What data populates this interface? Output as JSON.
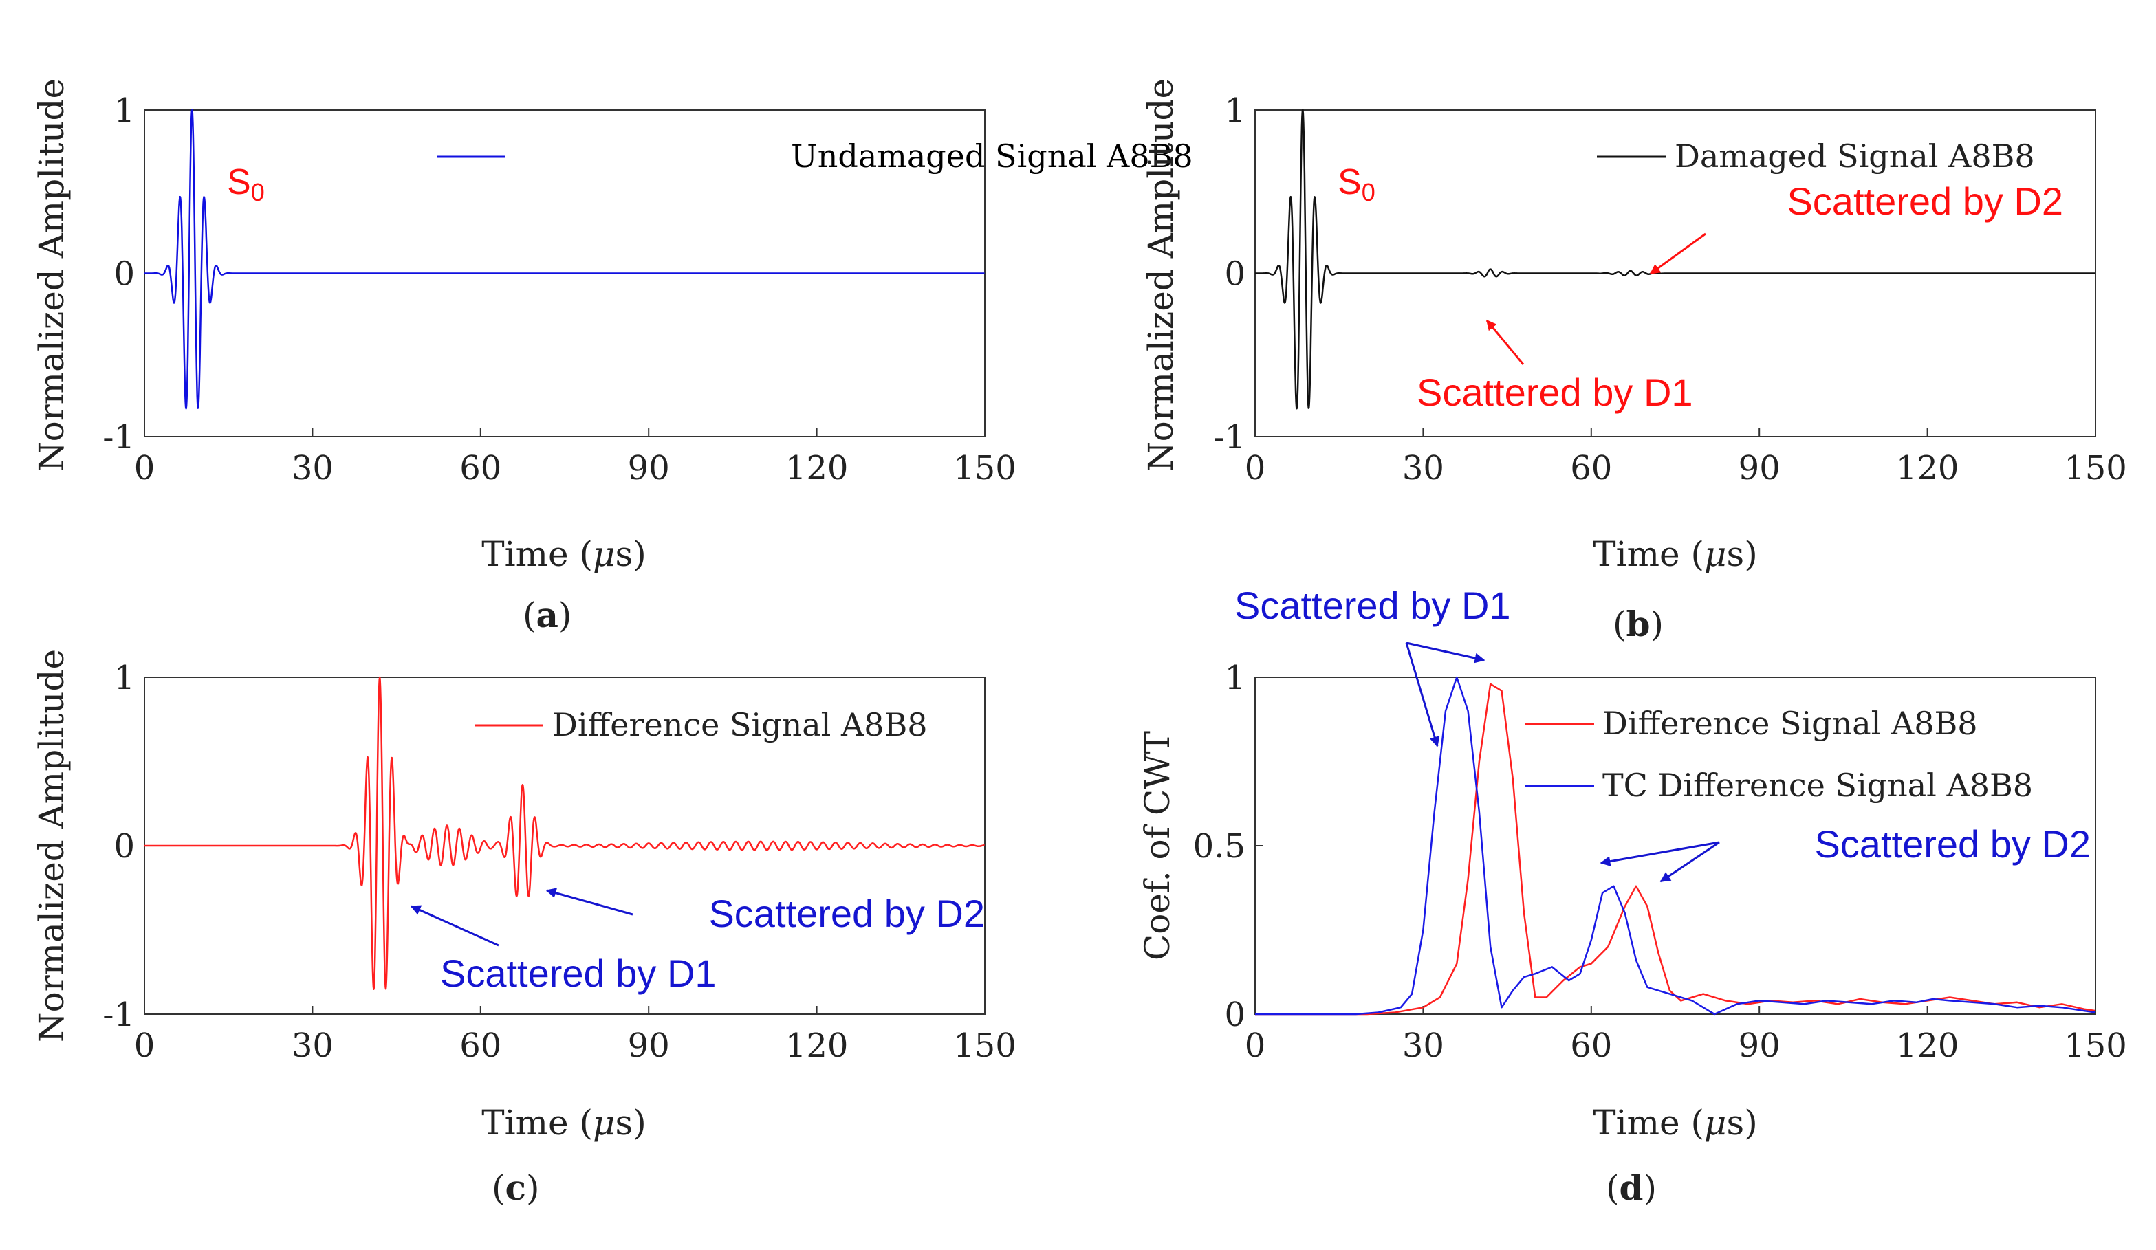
{
  "colors": {
    "axis": "#333333",
    "undamaged": "#1010e0",
    "damaged": "#111111",
    "difference": "#ff2020",
    "tc_difference": "#1a1ae6",
    "annotation_red": "#ff1010",
    "annotation_blue": "#1515d0"
  },
  "xlabel": "Time (μs)",
  "xlabel_prefix": "Time (",
  "xlabel_mu": "μ",
  "xlabel_suffix": "s)",
  "panel_a": {
    "caption": "a",
    "legend": "Undamaged Signal A8B8",
    "mode_label_main": "S",
    "mode_label_sub": "0",
    "ylabel": "Normalized Amplitude"
  },
  "panel_b": {
    "caption": "b",
    "legend": "Damaged Signal A8B8",
    "mode_label_main": "S",
    "mode_label_sub": "0",
    "ylabel": "Normalized Amplitude",
    "annotation_d2": "Scattered by D2",
    "annotation_d1": "Scattered by D1"
  },
  "panel_c": {
    "caption": "c",
    "legend": "Difference Signal A8B8",
    "ylabel": "Normalized Amplitude",
    "annotation_d2": "Scattered by D2",
    "annotation_d1": "Scattered by D1"
  },
  "panel_d": {
    "caption": "d",
    "legend_1": "Difference Signal A8B8",
    "legend_2": "TC Difference Signal A8B8",
    "ylabel": "Coef. of CWT",
    "annotation_d1": "Scattered by D1",
    "annotation_d2": "Scattered by D2"
  },
  "chart_data": [
    {
      "type": "line",
      "panel": "a",
      "ylabel": "Normalized Amplitude",
      "xlabel": "Time (μs)",
      "xlim": [
        0,
        150
      ],
      "ylim": [
        -1,
        1
      ],
      "xticks": [
        0,
        30,
        60,
        90,
        120,
        150
      ],
      "yticks": [
        -1,
        0,
        1
      ],
      "xtick_labels": [
        "0",
        "30",
        "60",
        "90",
        "120",
        "150"
      ],
      "ytick_labels": [
        "-1",
        "0",
        "1"
      ],
      "legend": "top-right",
      "series": [
        {
          "name": "Undamaged Signal A8B8",
          "wave_packets": [
            {
              "center": 8.5,
              "width": 5.5,
              "amplitude": 1.0,
              "frequency": 0.45
            }
          ]
        }
      ]
    },
    {
      "type": "line",
      "panel": "b",
      "ylabel": "Normalized Amplitude",
      "xlabel": "Time (μs)",
      "xlim": [
        0,
        150
      ],
      "ylim": [
        -1,
        1
      ],
      "xticks": [
        0,
        30,
        60,
        90,
        120,
        150
      ],
      "yticks": [
        -1,
        0,
        1
      ],
      "xtick_labels": [
        "0",
        "30",
        "60",
        "90",
        "120",
        "150"
      ],
      "ytick_labels": [
        "-1",
        "0",
        "1"
      ],
      "legend": "top-right",
      "series": [
        {
          "name": "Damaged Signal A8B8",
          "wave_packets": [
            {
              "center": 8.5,
              "width": 5.5,
              "amplitude": 1.0,
              "frequency": 0.45
            },
            {
              "center": 42,
              "width": 5,
              "amplitude": 0.025,
              "frequency": 0.45
            },
            {
              "center": 67,
              "width": 7,
              "amplitude": 0.015,
              "frequency": 0.45
            }
          ]
        }
      ]
    },
    {
      "type": "line",
      "panel": "c",
      "ylabel": "Normalized Amplitude",
      "xlabel": "Time (μs)",
      "xlim": [
        0,
        150
      ],
      "ylim": [
        -1,
        1
      ],
      "xticks": [
        0,
        30,
        60,
        90,
        120,
        150
      ],
      "yticks": [
        -1,
        0,
        1
      ],
      "xtick_labels": [
        "0",
        "30",
        "60",
        "90",
        "120",
        "150"
      ],
      "ytick_labels": [
        "-1",
        "0",
        "1"
      ],
      "legend": "top-right",
      "series": [
        {
          "name": "Difference Signal A8B8",
          "wave_packets": [
            {
              "center": 42,
              "width": 6,
              "amplitude": 1.0,
              "frequency": 0.45
            },
            {
              "center": 54,
              "width": 12,
              "amplitude": 0.12,
              "frequency": 0.45
            },
            {
              "center": 67.5,
              "width": 5.5,
              "amplitude": 0.36,
              "frequency": 0.45
            },
            {
              "center": 110,
              "width": 60,
              "amplitude": 0.025,
              "frequency": 0.45
            }
          ]
        }
      ]
    },
    {
      "type": "line",
      "panel": "d",
      "ylabel": "Coef. of CWT",
      "xlabel": "Time (μs)",
      "xlim": [
        0,
        150
      ],
      "ylim": [
        0,
        1
      ],
      "xticks": [
        0,
        30,
        60,
        90,
        120,
        150
      ],
      "yticks": [
        0,
        0.5,
        1
      ],
      "xtick_labels": [
        "0",
        "30",
        "60",
        "90",
        "120",
        "150"
      ],
      "ytick_labels": [
        "0",
        "0.5",
        "1"
      ],
      "legend": "top-right",
      "series": [
        {
          "name": "Difference Signal A8B8",
          "x": [
            0,
            20,
            25,
            30,
            33,
            36,
            38,
            40,
            42,
            44,
            46,
            48,
            50,
            52,
            55,
            58,
            60,
            63,
            66,
            68,
            70,
            72,
            74,
            76,
            78,
            80,
            84,
            88,
            92,
            96,
            100,
            104,
            108,
            112,
            116,
            120,
            124,
            128,
            132,
            136,
            140,
            144,
            148,
            150
          ],
          "y": [
            0,
            0,
            0.005,
            0.02,
            0.05,
            0.15,
            0.4,
            0.75,
            0.98,
            0.96,
            0.7,
            0.3,
            0.05,
            0.05,
            0.1,
            0.14,
            0.15,
            0.2,
            0.32,
            0.38,
            0.32,
            0.18,
            0.07,
            0.04,
            0.05,
            0.06,
            0.04,
            0.03,
            0.04,
            0.035,
            0.04,
            0.03,
            0.045,
            0.035,
            0.03,
            0.04,
            0.05,
            0.04,
            0.03,
            0.035,
            0.02,
            0.03,
            0.015,
            0.01
          ]
        },
        {
          "name": "TC Difference Signal A8B8",
          "x": [
            0,
            18,
            22,
            26,
            28,
            30,
            32,
            34,
            36,
            38,
            40,
            42,
            44,
            46,
            48,
            50,
            53,
            56,
            58,
            60,
            62,
            64,
            66,
            68,
            70,
            74,
            78,
            80,
            82,
            86,
            90,
            94,
            98,
            102,
            106,
            110,
            114,
            118,
            121,
            124,
            128,
            132,
            136,
            140,
            144,
            148,
            150
          ],
          "y": [
            0,
            0,
            0.005,
            0.02,
            0.06,
            0.25,
            0.6,
            0.9,
            1.0,
            0.9,
            0.6,
            0.2,
            0.02,
            0.07,
            0.11,
            0.12,
            0.14,
            0.1,
            0.12,
            0.22,
            0.36,
            0.38,
            0.3,
            0.16,
            0.08,
            0.06,
            0.04,
            0.02,
            0.0,
            0.03,
            0.04,
            0.035,
            0.03,
            0.04,
            0.035,
            0.03,
            0.04,
            0.035,
            0.045,
            0.04,
            0.035,
            0.03,
            0.02,
            0.025,
            0.02,
            0.01,
            0.005
          ]
        }
      ]
    }
  ]
}
